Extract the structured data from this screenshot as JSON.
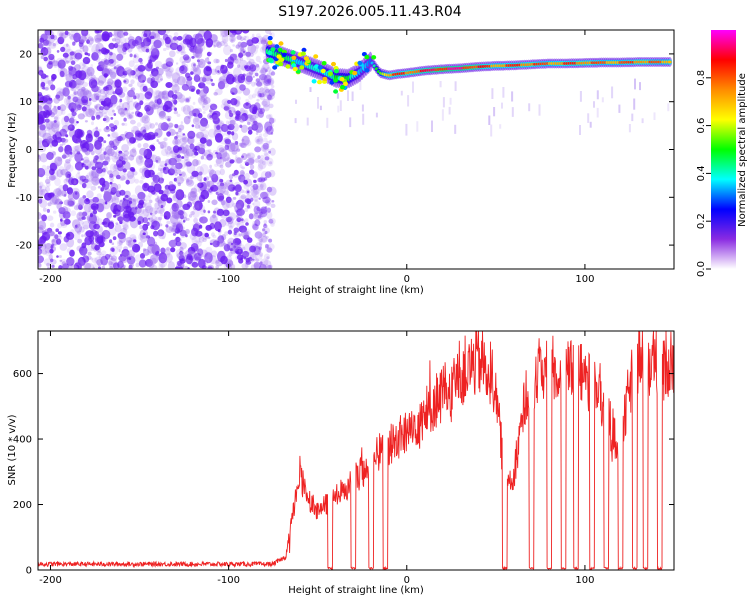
{
  "title": "S197.2026.005.11.43.R04",
  "chart_data": [
    {
      "type": "heatmap",
      "xlabel": "Height of straight line (km)",
      "ylabel": "Frequency (Hz)",
      "xlim": [
        -207,
        150
      ],
      "ylim": [
        -25,
        25
      ],
      "x_ticks": [
        -200,
        -100,
        0,
        100
      ],
      "x_tick_labels": [
        "-200",
        "-100",
        "0",
        "100"
      ],
      "y_ticks": [
        20,
        10,
        0,
        -10,
        -20
      ],
      "y_tick_labels": [
        "20",
        "10",
        "0",
        "-10",
        "-20"
      ],
      "colorbar": {
        "label": "Normalized spectral amplitude",
        "range": [
          0,
          1
        ],
        "ticks": [
          0,
          0.2,
          0.4,
          0.6,
          0.8
        ],
        "tick_labels": [
          "0.0",
          "0.2",
          "0.4",
          "0.6",
          "0.8"
        ],
        "stops": [
          "#ffffff",
          "#8a2be2",
          "#0000ff",
          "#00ffff",
          "#00ff00",
          "#ffff00",
          "#ff8c00",
          "#ff0000",
          "#ff00ff"
        ]
      },
      "noise_region": [
        -207,
        -75
      ],
      "ridge": {
        "x": [
          -78,
          -70,
          -62,
          -55,
          -48,
          -40,
          -33,
          -27,
          -20,
          -15,
          -10,
          -5,
          0,
          10,
          20,
          30,
          40,
          50,
          60,
          70,
          80,
          90,
          100,
          110,
          120,
          130,
          140,
          148
        ],
        "freq": [
          20.5,
          19.5,
          18.5,
          17.5,
          16.5,
          15.0,
          14.8,
          16.0,
          18.5,
          16.0,
          15.5,
          15.8,
          16.0,
          16.5,
          16.8,
          17.0,
          17.3,
          17.5,
          17.6,
          17.8,
          18.0,
          18.0,
          18.1,
          18.2,
          18.2,
          18.3,
          18.3,
          18.3
        ],
        "amp": [
          0.5,
          0.5,
          0.4,
          0.4,
          0.4,
          0.5,
          0.5,
          0.4,
          0.3,
          0.6,
          0.8,
          0.85,
          0.85,
          0.9,
          0.95,
          0.95,
          0.9,
          0.8,
          0.85,
          0.85,
          0.8,
          0.85,
          0.85,
          0.8,
          0.8,
          0.85,
          0.8,
          0.8
        ]
      }
    },
    {
      "type": "line",
      "xlabel": "Height of straight line (km)",
      "ylabel": "SNR (10 * v/v)",
      "xlim": [
        -207,
        150
      ],
      "ylim": [
        0,
        730
      ],
      "x_ticks": [
        -200,
        -100,
        0,
        100
      ],
      "x_tick_labels": [
        "-200",
        "-100",
        "0",
        "100"
      ],
      "y_ticks": [
        0,
        200,
        400,
        600
      ],
      "y_tick_labels": [
        "0",
        "200",
        "400",
        "600"
      ],
      "color": "#ee2222",
      "series": [
        {
          "name": "SNR",
          "x": [
            -207,
            -180,
            -150,
            -120,
            -90,
            -75,
            -68,
            -63,
            -60,
            -55,
            -50,
            -45,
            -40,
            -35,
            -30,
            -25,
            -20,
            -15,
            -10,
            -5,
            0,
            5,
            10,
            15,
            20,
            25,
            30,
            35,
            40,
            45,
            50,
            55,
            60,
            65,
            70,
            75,
            80,
            85,
            90,
            95,
            100,
            105,
            110,
            115,
            120,
            125,
            130,
            135,
            140,
            145,
            150
          ],
          "y": [
            18,
            18,
            18,
            18,
            18,
            18,
            40,
            200,
            300,
            220,
            180,
            200,
            220,
            250,
            280,
            300,
            330,
            360,
            380,
            400,
            420,
            450,
            480,
            510,
            540,
            560,
            600,
            620,
            640,
            620,
            560,
            270,
            290,
            480,
            580,
            620,
            620,
            610,
            600,
            600,
            590,
            580,
            520,
            430,
            370,
            560,
            640,
            640,
            640,
            640,
            640
          ]
        }
      ],
      "dropout_x": [
        -43,
        -30,
        -20,
        -12,
        55,
        70,
        80,
        88,
        95,
        104,
        112,
        120,
        128,
        134,
        142
      ]
    }
  ]
}
